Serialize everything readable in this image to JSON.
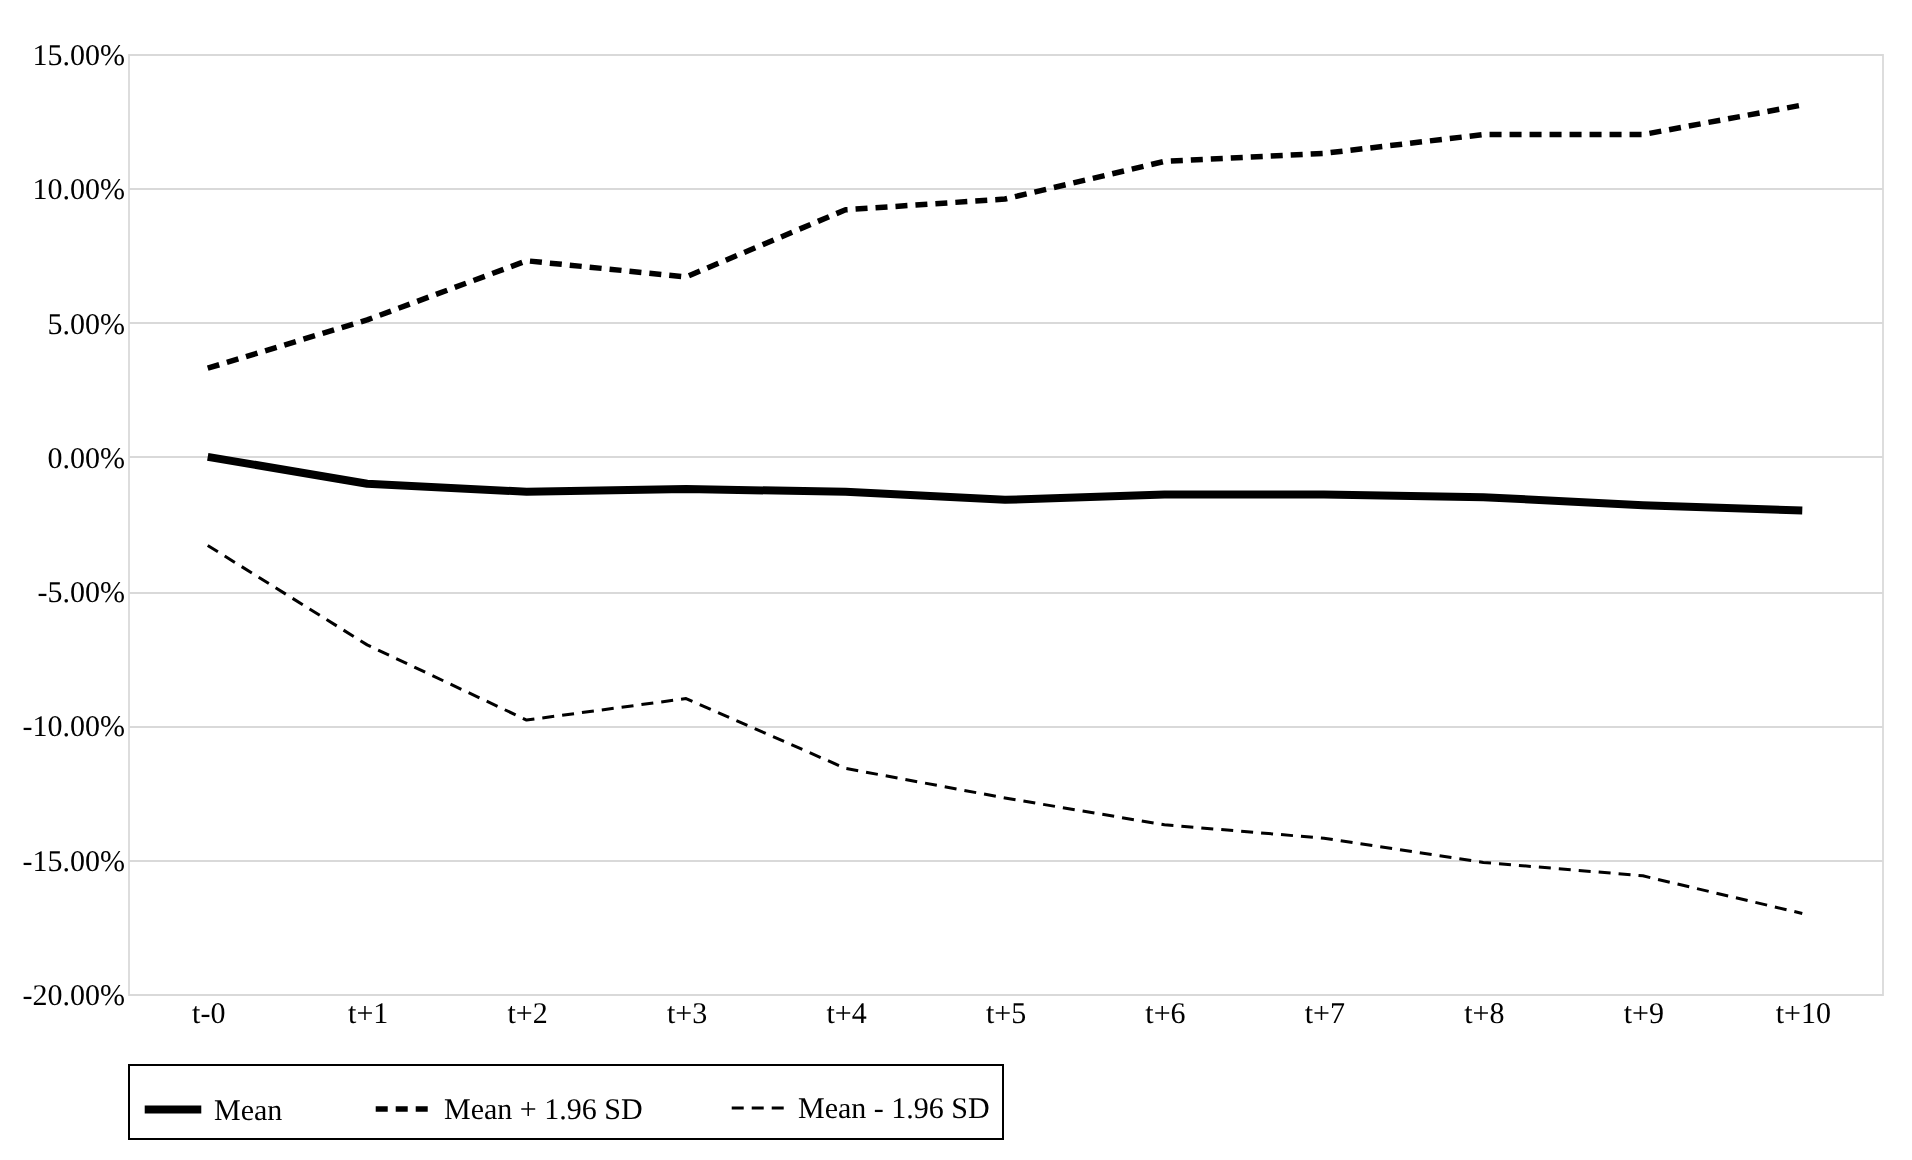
{
  "chart_data": {
    "type": "line",
    "categories": [
      "t-0",
      "t+1",
      "t+2",
      "t+3",
      "t+4",
      "t+5",
      "t+6",
      "t+7",
      "t+8",
      "t+9",
      "t+10"
    ],
    "series": [
      {
        "name": "Mean",
        "color": "#000000",
        "line_style": "solid",
        "values": [
          0.0,
          -1.0,
          -1.3,
          -1.2,
          -1.3,
          -1.6,
          -1.4,
          -1.4,
          -1.5,
          -1.8,
          -2.0
        ]
      },
      {
        "name": "Mean + 1.96 SD",
        "color": "#000000",
        "line_style": "dashed",
        "values": [
          3.3,
          5.1,
          7.3,
          6.7,
          9.2,
          9.6,
          11.0,
          11.3,
          12.0,
          12.0,
          13.1
        ]
      },
      {
        "name": "Mean - 1.96 SD",
        "color": "#000000",
        "line_style": "dashed",
        "values": [
          -3.3,
          -7.0,
          -9.8,
          -9.0,
          -11.6,
          -12.7,
          -13.7,
          -14.2,
          -15.1,
          -15.6,
          -17.0
        ]
      }
    ],
    "ylim": [
      -20,
      15
    ],
    "yticks": [
      {
        "value": -20,
        "label": "-20.00%"
      },
      {
        "value": -15,
        "label": "-15.00%"
      },
      {
        "value": -10,
        "label": "-10.00%"
      },
      {
        "value": -5,
        "label": "-5.00%"
      },
      {
        "value": 0,
        "label": "0.00%"
      },
      {
        "value": 5,
        "label": "5.00%"
      },
      {
        "value": 10,
        "label": "10.00%"
      },
      {
        "value": 15,
        "label": "15.00%"
      }
    ],
    "grid": "y",
    "legend": "bottom",
    "marker": "none"
  }
}
